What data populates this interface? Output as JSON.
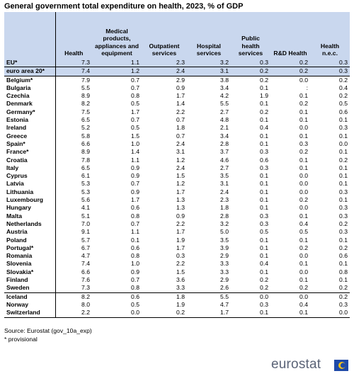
{
  "title": "General government total expenditure on health, 2023, % of GDP",
  "columns": [
    "",
    "Health",
    "Medical products, appliances and equipment",
    "Outpatient services",
    "Hospital services",
    "Public health services",
    "R&D Health",
    "Health n.e.c."
  ],
  "aggregates": [
    {
      "name": "EU*",
      "values": [
        "7.3",
        "1.1",
        "2.3",
        "3.2",
        "0.3",
        "0.2",
        "0.3"
      ]
    },
    {
      "name": "euro area 20*",
      "values": [
        "7.4",
        "1.2",
        "2.4",
        "3.1",
        "0.2",
        "0.2",
        "0.3"
      ]
    }
  ],
  "countries": [
    {
      "name": "Belgium*",
      "values": [
        "7.9",
        "0.7",
        "2.9",
        "3.8",
        "0.2",
        "0.0",
        "0.2"
      ]
    },
    {
      "name": "Bulgaria",
      "values": [
        "5.5",
        "0.7",
        "0.9",
        "3.4",
        "0.1",
        ":",
        "0.4"
      ]
    },
    {
      "name": "Czechia",
      "values": [
        "8.9",
        "0.8",
        "1.7",
        "4.2",
        "1.9",
        "0.1",
        "0.2"
      ]
    },
    {
      "name": "Denmark",
      "values": [
        "8.2",
        "0.5",
        "1.4",
        "5.5",
        "0.1",
        "0.2",
        "0.5"
      ]
    },
    {
      "name": "Germany*",
      "values": [
        "7.5",
        "1.7",
        "2.2",
        "2.7",
        "0.2",
        "0.1",
        "0.6"
      ]
    },
    {
      "name": "Estonia",
      "values": [
        "6.5",
        "0.7",
        "0.7",
        "4.8",
        "0.1",
        "0.1",
        "0.1"
      ]
    },
    {
      "name": "Ireland",
      "values": [
        "5.2",
        "0.5",
        "1.8",
        "2.1",
        "0.4",
        "0.0",
        "0.3"
      ]
    },
    {
      "name": "Greece",
      "values": [
        "5.8",
        "1.5",
        "0.7",
        "3.4",
        "0.1",
        "0.1",
        "0.1"
      ]
    },
    {
      "name": "Spain*",
      "values": [
        "6.6",
        "1.0",
        "2.4",
        "2.8",
        "0.1",
        "0.3",
        "0.0"
      ]
    },
    {
      "name": "France*",
      "values": [
        "8.9",
        "1.4",
        "3.1",
        "3.7",
        "0.3",
        "0.2",
        "0.1"
      ]
    },
    {
      "name": "Croatia",
      "values": [
        "7.8",
        "1.1",
        "1.2",
        "4.6",
        "0.6",
        "0.1",
        "0.2"
      ]
    },
    {
      "name": "Italy",
      "values": [
        "6.5",
        "0.9",
        "2.4",
        "2.7",
        "0.3",
        "0.1",
        "0.1"
      ]
    },
    {
      "name": "Cyprus",
      "values": [
        "6.1",
        "0.9",
        "1.5",
        "3.5",
        "0.1",
        "0.0",
        "0.1"
      ]
    },
    {
      "name": "Latvia",
      "values": [
        "5.3",
        "0.7",
        "1.2",
        "3.1",
        "0.1",
        "0.0",
        "0.1"
      ]
    },
    {
      "name": "Lithuania",
      "values": [
        "5.3",
        "0.9",
        "1.7",
        "2.4",
        "0.1",
        "0.0",
        "0.3"
      ]
    },
    {
      "name": "Luxembourg",
      "values": [
        "5.6",
        "1.7",
        "1.3",
        "2.3",
        "0.1",
        "0.2",
        "0.1"
      ]
    },
    {
      "name": "Hungary",
      "values": [
        "4.1",
        "0.6",
        "1.3",
        "1.8",
        "0.1",
        "0.0",
        "0.3"
      ]
    },
    {
      "name": "Malta",
      "values": [
        "5.1",
        "0.8",
        "0.9",
        "2.8",
        "0.3",
        "0.1",
        "0.3"
      ]
    },
    {
      "name": "Netherlands",
      "values": [
        "7.0",
        "0.7",
        "2.2",
        "3.2",
        "0.3",
        "0.4",
        "0.2"
      ]
    },
    {
      "name": "Austria",
      "values": [
        "9.1",
        "1.1",
        "1.7",
        "5.0",
        "0.5",
        "0.5",
        "0.3"
      ]
    },
    {
      "name": "Poland",
      "values": [
        "5.7",
        "0.1",
        "1.9",
        "3.5",
        "0.1",
        "0.1",
        "0.1"
      ]
    },
    {
      "name": "Portugal*",
      "values": [
        "6.7",
        "0.6",
        "1.7",
        "3.9",
        "0.1",
        "0.2",
        "0.2"
      ]
    },
    {
      "name": "Romania",
      "values": [
        "4.7",
        "0.8",
        "0.3",
        "2.9",
        "0.1",
        "0.0",
        "0.6"
      ]
    },
    {
      "name": "Slovenia",
      "values": [
        "7.4",
        "1.0",
        "2.2",
        "3.3",
        "0.4",
        "0.1",
        "0.1"
      ]
    },
    {
      "name": "Slovakia*",
      "values": [
        "6.6",
        "0.9",
        "1.5",
        "3.3",
        "0.1",
        "0.0",
        "0.8"
      ]
    },
    {
      "name": "Finland",
      "values": [
        "7.6",
        "0.7",
        "3.6",
        "2.9",
        "0.2",
        "0.1",
        "0.1"
      ]
    },
    {
      "name": "Sweden",
      "values": [
        "7.3",
        "0.8",
        "3.3",
        "2.6",
        "0.2",
        "0.2",
        "0.2"
      ]
    }
  ],
  "others": [
    {
      "name": "Iceland",
      "values": [
        "8.2",
        "0.6",
        "1.8",
        "5.5",
        "0.0",
        "0.0",
        "0.2"
      ]
    },
    {
      "name": "Norway",
      "values": [
        "8.0",
        "0.5",
        "1.9",
        "4.7",
        "0.3",
        "0.4",
        "0.3"
      ]
    },
    {
      "name": "Switzerland",
      "values": [
        "2.2",
        "0.0",
        "0.2",
        "1.7",
        "0.1",
        "0.1",
        "0.0"
      ]
    }
  ],
  "source": "Source: Eurostat (gov_10a_exp)",
  "note": "* provisional",
  "logo_text": "eurostat",
  "colors": {
    "header_bg": "#c9d7ee",
    "logo_text": "#5a6377",
    "logo_accent": "#f6c21b",
    "logo_blue": "#1f4aa8"
  }
}
